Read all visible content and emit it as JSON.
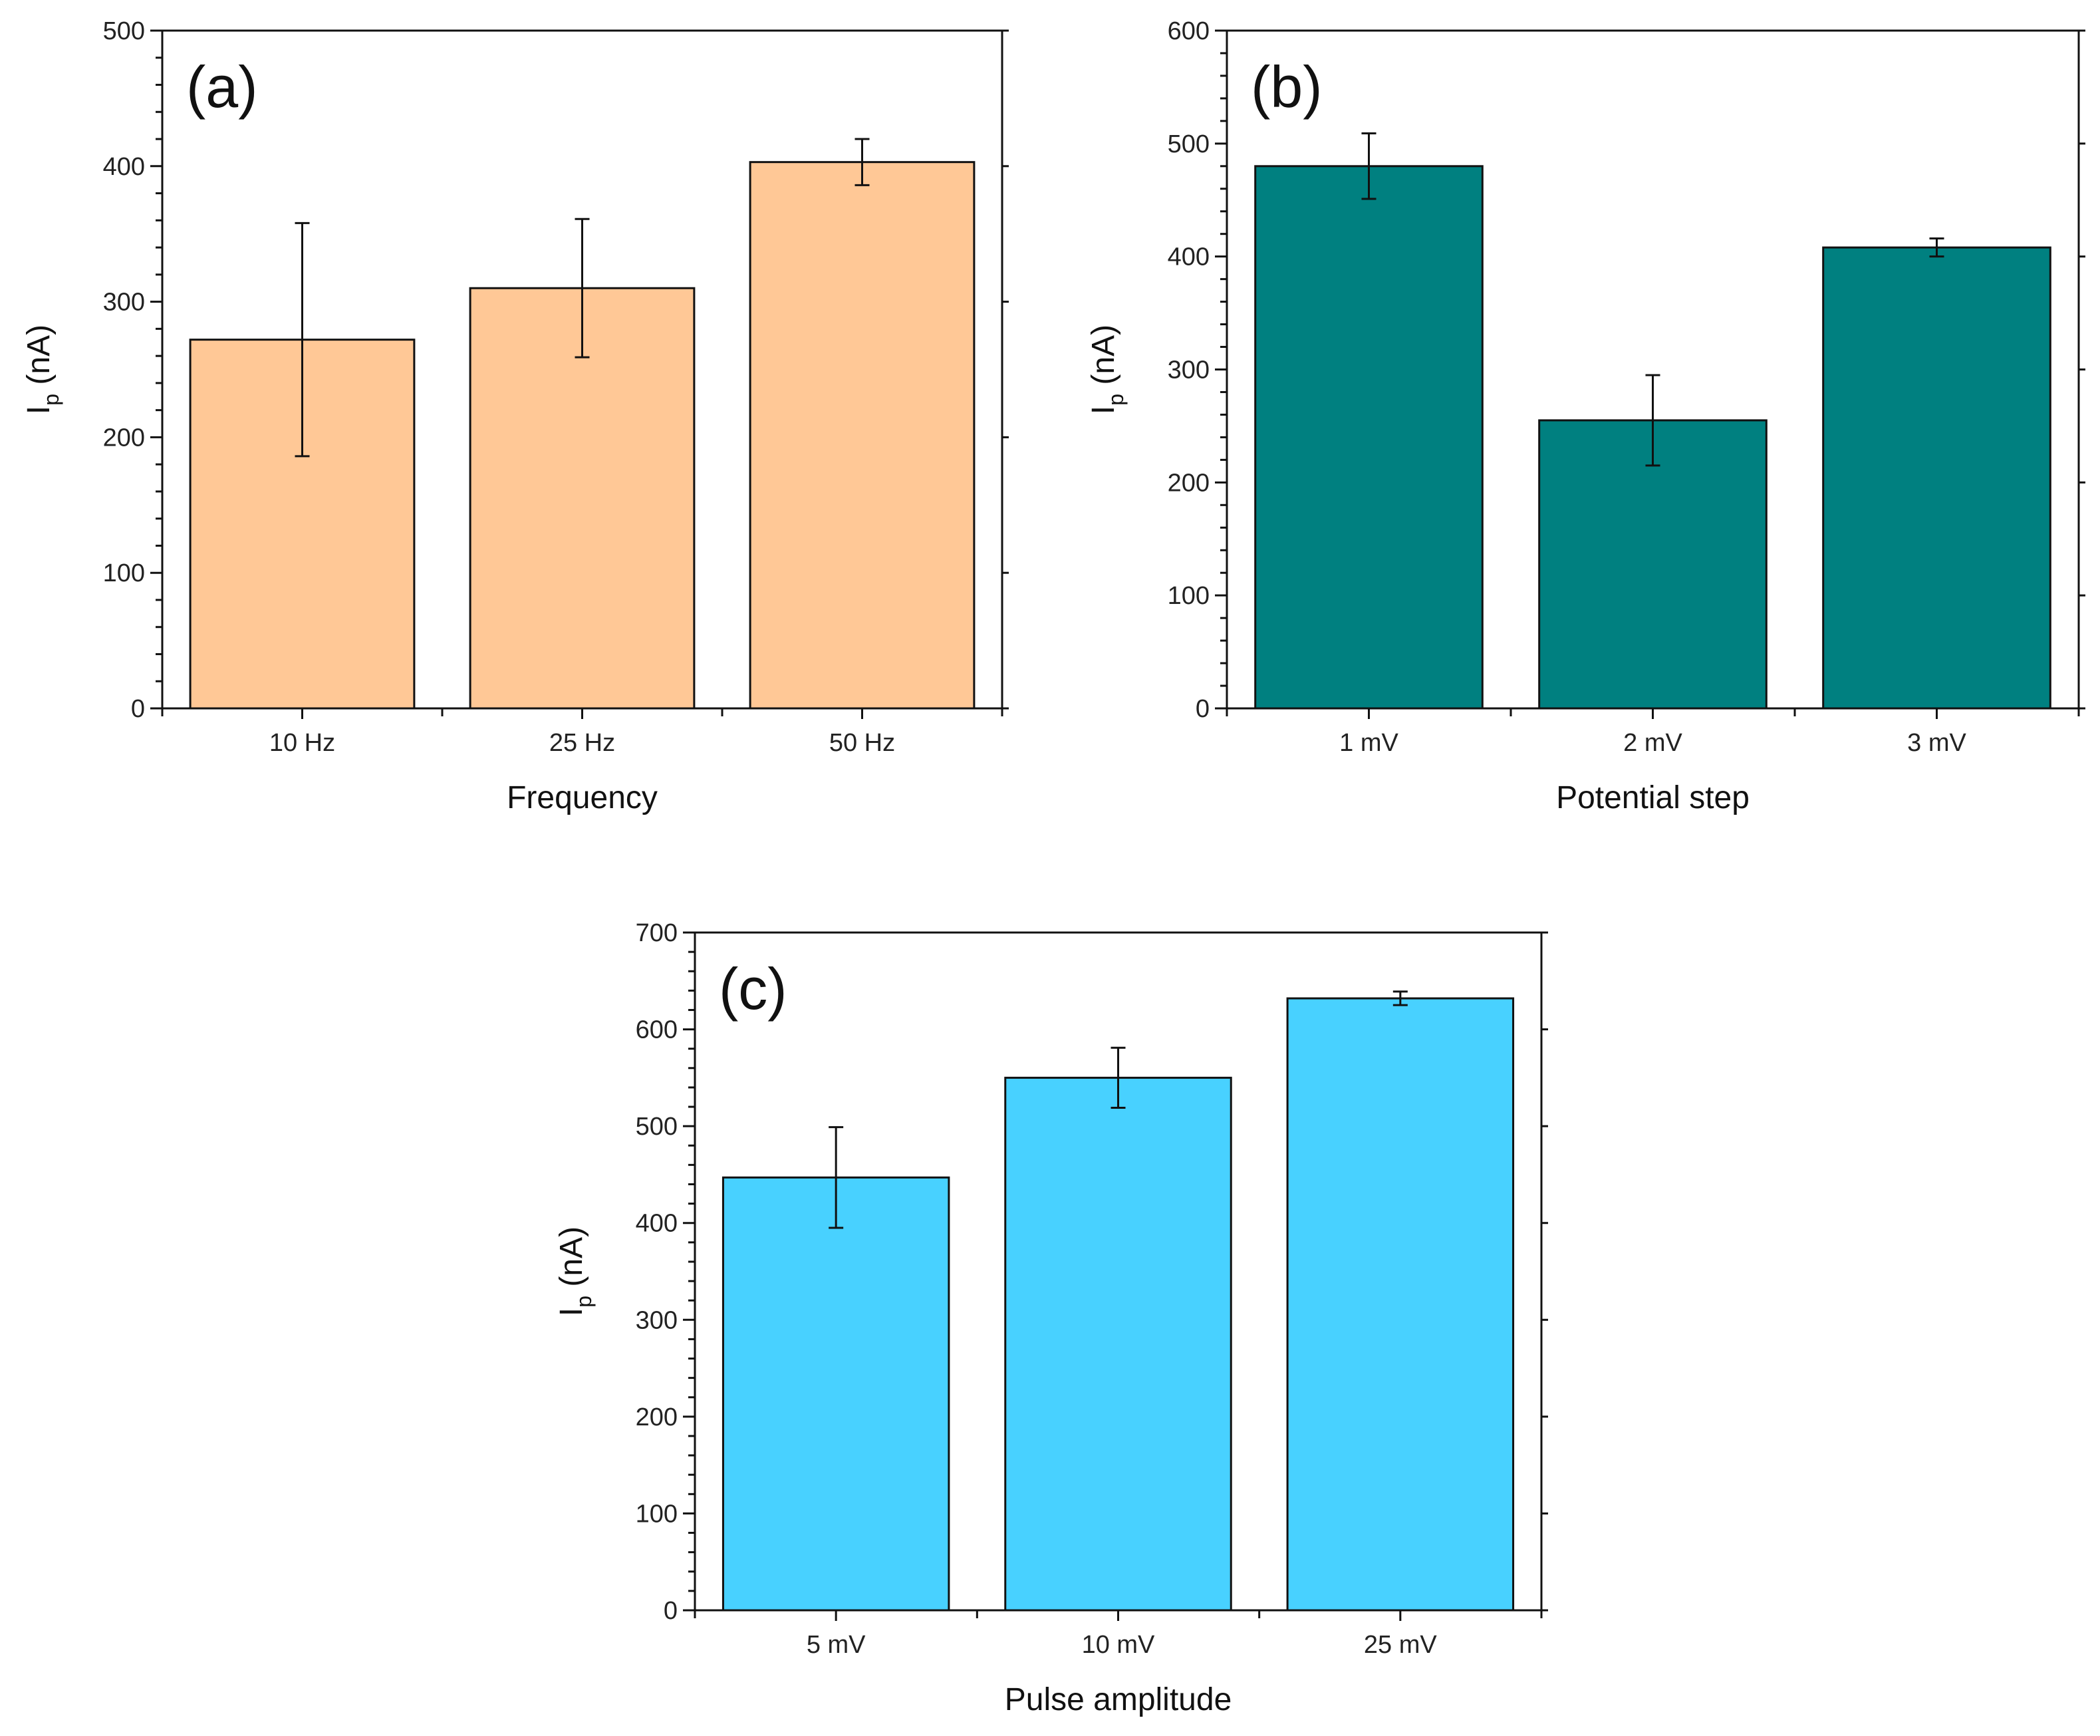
{
  "chart_data": [
    {
      "type": "bar",
      "panel_label": "(a)",
      "xlabel": "Frequency",
      "ylabel": {
        "main": "I",
        "sub": "p",
        "rest": " (nA)"
      },
      "categories": [
        "10 Hz",
        "25 Hz",
        "50 Hz"
      ],
      "values": [
        272,
        310,
        403
      ],
      "errors": [
        86,
        51,
        17
      ],
      "ylim": [
        0,
        500
      ],
      "yticks": [
        0,
        100,
        200,
        300,
        400,
        500
      ],
      "color": "#FFC896",
      "grid": false
    },
    {
      "type": "bar",
      "panel_label": "(b)",
      "xlabel": "Potential step",
      "ylabel": {
        "main": "I",
        "sub": "p",
        "rest": " (nA)"
      },
      "categories": [
        "1 mV",
        "2 mV",
        "3 mV"
      ],
      "values": [
        480,
        255,
        408
      ],
      "errors": [
        29,
        40,
        8
      ],
      "ylim": [
        0,
        600
      ],
      "yticks": [
        0,
        100,
        200,
        300,
        400,
        500,
        600
      ],
      "color": "#008080",
      "grid": false
    },
    {
      "type": "bar",
      "panel_label": "(c)",
      "xlabel": "Pulse amplitude",
      "ylabel": {
        "main": "I",
        "sub": "p",
        "rest": " (nA)"
      },
      "categories": [
        "5 mV",
        "10 mV",
        "25 mV"
      ],
      "values": [
        447,
        550,
        632
      ],
      "errors": [
        52,
        31,
        7
      ],
      "ylim": [
        0,
        700
      ],
      "yticks": [
        0,
        100,
        200,
        300,
        400,
        500,
        600,
        700
      ],
      "color": "#48D1FF",
      "grid": false
    }
  ]
}
